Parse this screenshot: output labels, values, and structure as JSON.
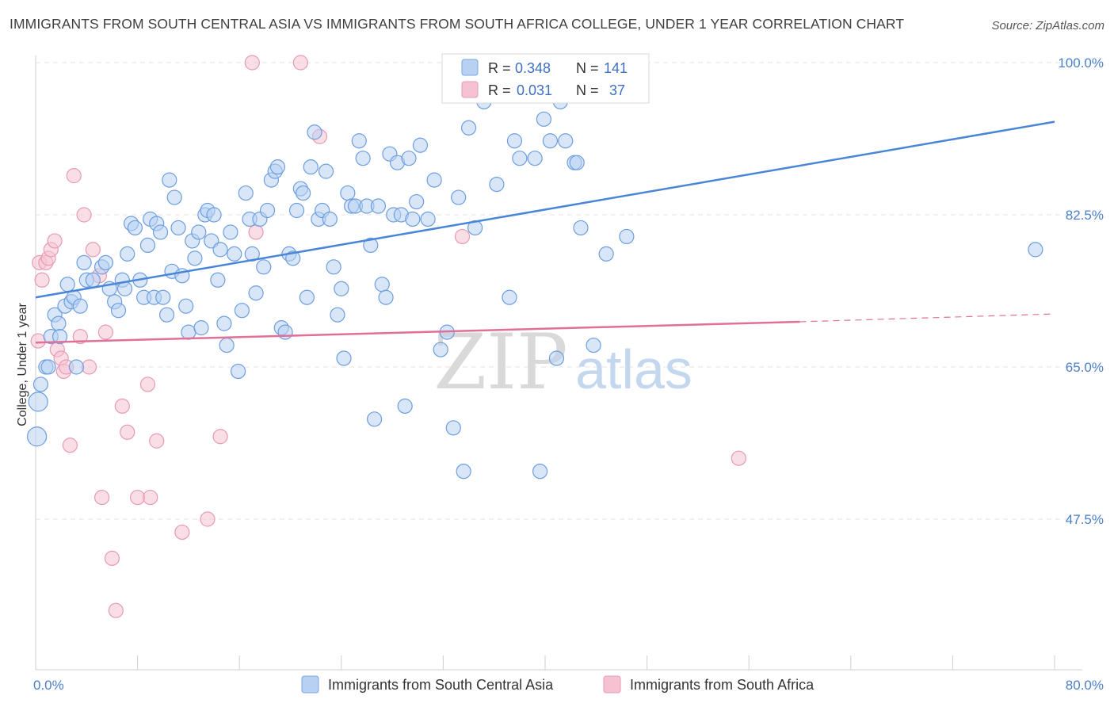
{
  "title": "IMMIGRANTS FROM SOUTH CENTRAL ASIA VS IMMIGRANTS FROM SOUTH AFRICA COLLEGE, UNDER 1 YEAR CORRELATION CHART",
  "source": "Source: ZipAtlas.com",
  "watermark": {
    "zip": "ZIP",
    "atlas": "atlas"
  },
  "colors": {
    "blue": "#4a86d8",
    "blue_fill": "#b8d1f3",
    "pink": "#e07098",
    "pink_fill": "#f6c2d2",
    "axis_label": "#4a7fc9"
  },
  "legend": {
    "r_label": "R =",
    "n_label": "N =",
    "rows": [
      {
        "r": "0.348",
        "n": "141"
      },
      {
        "r": "0.031",
        "n": "37"
      }
    ]
  },
  "bottom_legend": [
    "Immigrants from South Central Asia",
    "Immigrants from South Africa"
  ],
  "chart_data": {
    "type": "scatter",
    "xlabel": "",
    "ylabel": "College, Under 1 year",
    "xlim": [
      0,
      80
    ],
    "ylim": [
      32,
      103
    ],
    "x_tick_labels": [
      "0.0%",
      "80.0%"
    ],
    "y_tick_labels": [
      "100.0%",
      "82.5%",
      "65.0%",
      "47.5%"
    ],
    "y_ticks": [
      100,
      82.5,
      65,
      47.5
    ],
    "grid": "horizontal dashed",
    "series": [
      {
        "name": "Immigrants from South Central Asia",
        "trend": {
          "x": [
            0,
            80
          ],
          "y": [
            73,
            93.2
          ]
        },
        "points": [
          [
            0.1,
            57
          ],
          [
            0.2,
            61
          ],
          [
            0.4,
            63
          ],
          [
            0.8,
            65
          ],
          [
            1,
            65
          ],
          [
            1.2,
            68.5
          ],
          [
            1.5,
            71
          ],
          [
            1.8,
            70
          ],
          [
            1.9,
            68.5
          ],
          [
            2.3,
            72
          ],
          [
            2.5,
            74.5
          ],
          [
            2.8,
            72.5
          ],
          [
            3,
            73
          ],
          [
            3.2,
            65
          ],
          [
            3.5,
            72
          ],
          [
            3.8,
            77
          ],
          [
            4,
            75
          ],
          [
            4.5,
            75
          ],
          [
            5.2,
            76.5
          ],
          [
            5.5,
            77
          ],
          [
            5.8,
            74
          ],
          [
            6.2,
            72.5
          ],
          [
            6.5,
            71.5
          ],
          [
            6.8,
            75
          ],
          [
            7,
            74
          ],
          [
            7.2,
            78
          ],
          [
            7.5,
            81.5
          ],
          [
            7.8,
            81
          ],
          [
            8.2,
            75
          ],
          [
            8.5,
            73
          ],
          [
            8.8,
            79
          ],
          [
            9,
            82
          ],
          [
            9.3,
            73
          ],
          [
            9.5,
            81.5
          ],
          [
            9.8,
            80.5
          ],
          [
            10,
            73
          ],
          [
            10.3,
            71
          ],
          [
            10.5,
            86.5
          ],
          [
            10.7,
            76
          ],
          [
            10.9,
            84.5
          ],
          [
            11.2,
            81
          ],
          [
            11.5,
            75.5
          ],
          [
            11.8,
            72
          ],
          [
            12,
            69
          ],
          [
            12.3,
            79.5
          ],
          [
            12.5,
            77.5
          ],
          [
            12.8,
            80.5
          ],
          [
            13,
            69.5
          ],
          [
            13.3,
            82.5
          ],
          [
            13.5,
            83
          ],
          [
            13.8,
            79.5
          ],
          [
            14,
            82.5
          ],
          [
            14.3,
            75
          ],
          [
            14.5,
            78.5
          ],
          [
            14.8,
            70
          ],
          [
            15,
            67.5
          ],
          [
            15.3,
            80.5
          ],
          [
            15.6,
            78
          ],
          [
            15.9,
            64.5
          ],
          [
            16.2,
            71.5
          ],
          [
            16.5,
            85
          ],
          [
            16.8,
            82
          ],
          [
            17,
            78
          ],
          [
            17.3,
            73.5
          ],
          [
            17.6,
            82
          ],
          [
            17.9,
            76.5
          ],
          [
            18.2,
            83
          ],
          [
            18.5,
            86.5
          ],
          [
            18.8,
            87.5
          ],
          [
            19,
            88
          ],
          [
            19.3,
            69.5
          ],
          [
            19.6,
            69
          ],
          [
            19.9,
            78
          ],
          [
            20.2,
            77.5
          ],
          [
            20.5,
            83
          ],
          [
            20.8,
            85.5
          ],
          [
            21,
            85
          ],
          [
            21.3,
            73
          ],
          [
            21.6,
            88
          ],
          [
            21.9,
            92
          ],
          [
            22.2,
            82
          ],
          [
            22.5,
            83
          ],
          [
            22.8,
            87.5
          ],
          [
            23.1,
            82
          ],
          [
            23.4,
            76.5
          ],
          [
            23.7,
            71
          ],
          [
            24,
            74
          ],
          [
            24.2,
            66
          ],
          [
            24.5,
            85
          ],
          [
            24.8,
            83.5
          ],
          [
            25.1,
            83.5
          ],
          [
            25.4,
            91
          ],
          [
            25.7,
            89
          ],
          [
            26,
            83.5
          ],
          [
            26.3,
            79
          ],
          [
            26.6,
            59
          ],
          [
            26.9,
            83.5
          ],
          [
            27.2,
            74.5
          ],
          [
            27.5,
            73
          ],
          [
            27.8,
            89.5
          ],
          [
            28.1,
            82.5
          ],
          [
            28.4,
            88.5
          ],
          [
            28.7,
            82.5
          ],
          [
            29,
            60.5
          ],
          [
            29.3,
            89
          ],
          [
            29.6,
            82
          ],
          [
            29.9,
            84
          ],
          [
            30.2,
            90.5
          ],
          [
            30.8,
            82
          ],
          [
            31.3,
            86.5
          ],
          [
            31.8,
            67
          ],
          [
            32.3,
            69
          ],
          [
            32.8,
            58
          ],
          [
            33.2,
            84.5
          ],
          [
            33.6,
            53
          ],
          [
            34,
            92.5
          ],
          [
            34.5,
            81
          ],
          [
            35.2,
            95.5
          ],
          [
            36.2,
            86
          ],
          [
            37.2,
            73
          ],
          [
            37.6,
            91
          ],
          [
            38,
            89
          ],
          [
            39.2,
            89
          ],
          [
            39.6,
            53
          ],
          [
            39.9,
            93.5
          ],
          [
            40.4,
            91
          ],
          [
            40.9,
            66
          ],
          [
            41.2,
            95.5
          ],
          [
            41.6,
            91
          ],
          [
            42.3,
            88.5
          ],
          [
            42.5,
            88.5
          ],
          [
            42.8,
            81
          ],
          [
            43.8,
            67.5
          ],
          [
            44.8,
            78
          ],
          [
            46.4,
            80
          ],
          [
            78.5,
            78.5
          ]
        ]
      },
      {
        "name": "Immigrants from South Africa",
        "trend": {
          "x": [
            0,
            60
          ],
          "y": [
            67.8,
            70.2
          ],
          "dashed_to": [
            80,
            71.1
          ]
        },
        "points": [
          [
            0.2,
            68
          ],
          [
            0.3,
            77
          ],
          [
            0.5,
            75
          ],
          [
            0.8,
            77
          ],
          [
            1,
            77.5
          ],
          [
            1.2,
            78.5
          ],
          [
            1.5,
            79.5
          ],
          [
            1.7,
            67
          ],
          [
            2,
            66
          ],
          [
            2.2,
            64.5
          ],
          [
            2.4,
            65
          ],
          [
            3,
            87
          ],
          [
            3.5,
            68.5
          ],
          [
            3.8,
            82.5
          ],
          [
            4.2,
            65
          ],
          [
            4.5,
            78.5
          ],
          [
            5,
            75.5
          ],
          [
            5.5,
            69
          ],
          [
            6,
            43
          ],
          [
            6.3,
            37
          ],
          [
            6.8,
            60.5
          ],
          [
            7.2,
            57.5
          ],
          [
            8,
            50
          ],
          [
            8.8,
            63
          ],
          [
            9,
            50
          ],
          [
            9.5,
            56.5
          ],
          [
            11.5,
            46
          ],
          [
            13.5,
            47.5
          ],
          [
            14.5,
            57
          ],
          [
            17,
            100
          ],
          [
            17.3,
            80.5
          ],
          [
            20.8,
            100
          ],
          [
            22.3,
            91.5
          ],
          [
            33.5,
            80
          ],
          [
            55.2,
            54.5
          ],
          [
            2.7,
            56
          ],
          [
            5.2,
            50
          ]
        ]
      }
    ]
  }
}
